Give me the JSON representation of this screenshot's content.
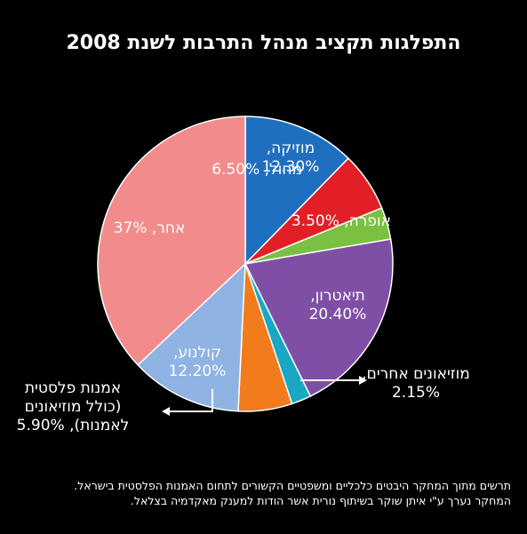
{
  "title": "התפלגות תקציב מנהל התרבות לשנת 2008",
  "footer": {
    "line1": "תרשים מתוך המחקר היבטים כלכליים ומשפטיים הקשורים לתחום האמנות הפלסטית בישראל.",
    "line2": "המחקר נערך ע\"י איתן שוקר בשיתוף נורית אשר הודות למענק מאקדמיה בצלאל."
  },
  "chart_data": {
    "type": "pie",
    "title": "התפלגות תקציב מנהל התרבות לשנת 2008",
    "slices": [
      {
        "label": "מוזיקה",
        "value": 12.3,
        "display": "12.30%",
        "color": "#1f6fc0"
      },
      {
        "label": "מחול",
        "value": 6.5,
        "display": "6.50%",
        "color": "#e21e26"
      },
      {
        "label": "אופרה",
        "value": 3.5,
        "display": "3.50%",
        "color": "#7ac142"
      },
      {
        "label": "תיאטרון",
        "value": 20.4,
        "display": "20.40%",
        "color": "#7f4fa6"
      },
      {
        "label": "מוזיאונים אחרים",
        "value": 2.15,
        "display": "2.15%",
        "color": "#1aa7c4"
      },
      {
        "label": "אמנות פלסטית (כולל מוזיאונים לאמנות)",
        "value": 5.9,
        "display": "5.90%",
        "color": "#f27b1c"
      },
      {
        "label": "קולנוע",
        "value": 12.2,
        "display": "12.20%",
        "color": "#8fb3e2"
      },
      {
        "label": "אחר",
        "value": 37,
        "display": "37%",
        "color": "#f28c8c"
      }
    ],
    "labels": {
      "music": [
        "מוזיקה,",
        "12.30%"
      ],
      "dance": [
        "מחול, 6.50%"
      ],
      "opera": [
        "אופרה, 3.50%"
      ],
      "theater": [
        "תיאטרון,",
        "20.40%"
      ],
      "museums": [
        "מוזיאונים אחרים,",
        "2.15%"
      ],
      "plastic": [
        "אמנות פלסטית",
        "(כולל מוזיאונים",
        "לאמנות), 5.90%"
      ],
      "cinema": [
        "קולנוע,",
        "12.20%"
      ],
      "other": [
        "אחר, 37%"
      ]
    }
  }
}
